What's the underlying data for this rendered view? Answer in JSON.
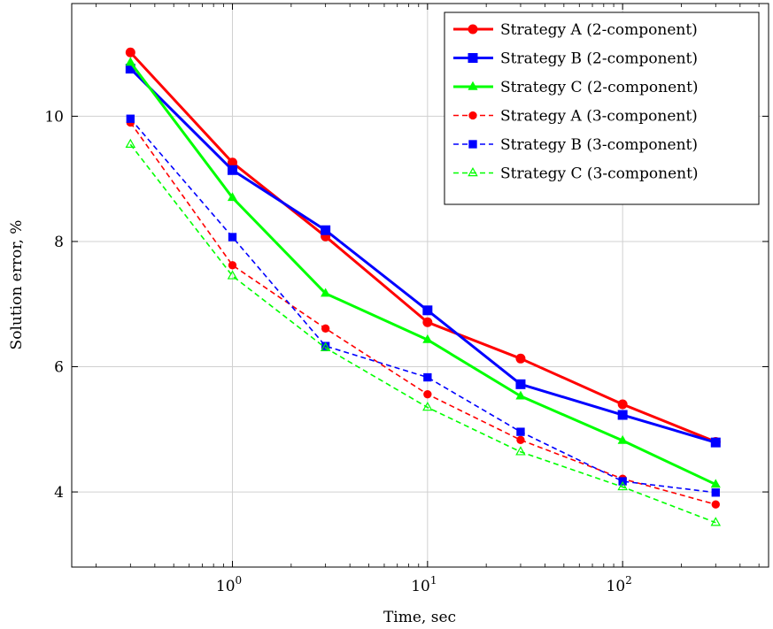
{
  "chart_data": {
    "type": "line",
    "xlabel": "Time, sec",
    "ylabel": "Solution error, %",
    "xscale": "log",
    "xlim": [
      0.15,
      560
    ],
    "ylim": [
      2.8,
      11.8
    ],
    "grid": true,
    "legend_position": "top-right",
    "x_ticks": [
      {
        "value": 1,
        "base": "10",
        "exp": "0"
      },
      {
        "value": 10,
        "base": "10",
        "exp": "1"
      },
      {
        "value": 100,
        "base": "10",
        "exp": "2"
      }
    ],
    "y_ticks": [
      {
        "value": 4,
        "label": "4"
      },
      {
        "value": 6,
        "label": "6"
      },
      {
        "value": 8,
        "label": "8"
      },
      {
        "value": 10,
        "label": "10"
      }
    ],
    "x": [
      0.3,
      1,
      3,
      10,
      30,
      100,
      300
    ],
    "series": [
      {
        "name": "Strategy A (2-component)",
        "color": "#ff0000",
        "marker": "circle",
        "dashed": false,
        "values": [
          11.02,
          9.26,
          8.08,
          6.71,
          6.13,
          5.4,
          4.8
        ]
      },
      {
        "name": "Strategy B (2-component)",
        "color": "#0000ff",
        "marker": "square",
        "dashed": false,
        "values": [
          10.76,
          9.14,
          8.18,
          6.9,
          5.72,
          5.23,
          4.79
        ]
      },
      {
        "name": "Strategy C (2-component)",
        "color": "#00ff00",
        "marker": "triangle",
        "dashed": false,
        "values": [
          10.86,
          8.7,
          7.17,
          6.43,
          5.53,
          4.82,
          4.12
        ]
      },
      {
        "name": "Strategy A (3-component)",
        "color": "#ff0000",
        "marker": "circle",
        "dashed": true,
        "values": [
          9.9,
          7.62,
          6.61,
          5.56,
          4.83,
          4.21,
          3.8
        ]
      },
      {
        "name": "Strategy B (3-component)",
        "color": "#0000ff",
        "marker": "square",
        "dashed": true,
        "values": [
          9.96,
          8.07,
          6.33,
          5.83,
          4.96,
          4.17,
          3.99
        ]
      },
      {
        "name": "Strategy C (3-component)",
        "color": "#00ff00",
        "marker": "triangle-open",
        "dashed": true,
        "values": [
          9.55,
          7.45,
          6.3,
          5.35,
          4.64,
          4.08,
          3.51
        ]
      }
    ]
  }
}
